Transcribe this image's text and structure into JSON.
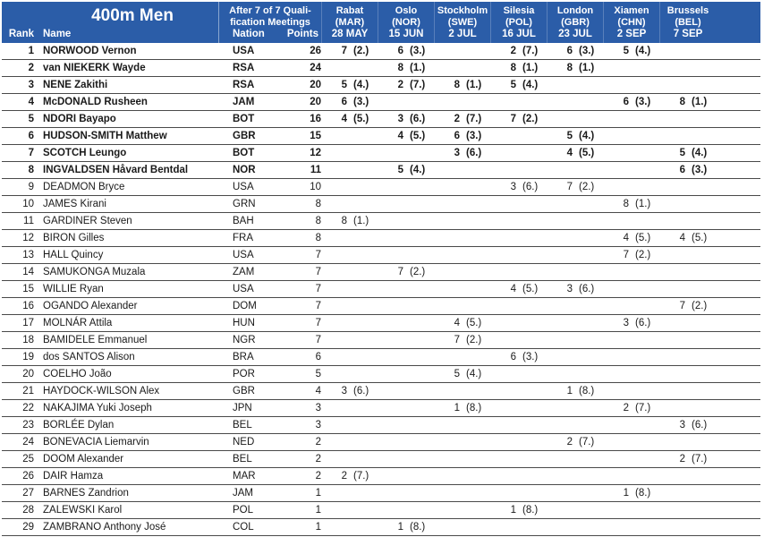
{
  "page": {
    "accent_blue": "#2b5da8",
    "line_color": "#4a4a4a",
    "text_color": "#1a1a1a"
  },
  "header": {
    "title": "400m Men",
    "qualification": [
      "After 7 of 7 Quali-",
      "fication Meetings"
    ],
    "columns": {
      "rank": "Rank",
      "name": "Name",
      "nation": "Nation",
      "points": "Points"
    },
    "meetings": [
      {
        "city": "Rabat",
        "nation": "(MAR)",
        "date": "28 MAY"
      },
      {
        "city": "Oslo",
        "nation": "(NOR)",
        "date": "15 JUN"
      },
      {
        "city": "Stockholm",
        "nation": "(SWE)",
        "date": "2 JUL"
      },
      {
        "city": "Silesia",
        "nation": "(POL)",
        "date": "16 JUL"
      },
      {
        "city": "London",
        "nation": "(GBR)",
        "date": "23 JUL"
      },
      {
        "city": "Xiamen",
        "nation": "(CHN)",
        "date": "2 SEP"
      },
      {
        "city": "Brussels",
        "nation": "(BEL)",
        "date": "7 SEP"
      }
    ]
  },
  "standings": [
    {
      "rank": "1",
      "name": "NORWOOD Vernon",
      "nation": "USA",
      "points": "26",
      "qualified_bold": true,
      "results": [
        [
          "7",
          "(2.)"
        ],
        [
          "6",
          "(3.)"
        ],
        null,
        [
          "2",
          "(7.)"
        ],
        [
          "6",
          "(3.)"
        ],
        [
          "5",
          "(4.)"
        ],
        null
      ]
    },
    {
      "rank": "2",
      "name": "van NIEKERK Wayde",
      "nation": "RSA",
      "points": "24",
      "qualified_bold": true,
      "results": [
        null,
        [
          "8",
          "(1.)"
        ],
        null,
        [
          "8",
          "(1.)"
        ],
        [
          "8",
          "(1.)"
        ],
        null,
        null
      ]
    },
    {
      "rank": "3",
      "name": "NENE Zakithi",
      "nation": "RSA",
      "points": "20",
      "qualified_bold": true,
      "results": [
        [
          "5",
          "(4.)"
        ],
        [
          "2",
          "(7.)"
        ],
        [
          "8",
          "(1.)"
        ],
        [
          "5",
          "(4.)"
        ],
        null,
        null,
        null
      ]
    },
    {
      "rank": "4",
      "name": "McDONALD Rusheen",
      "nation": "JAM",
      "points": "20",
      "qualified_bold": true,
      "results": [
        [
          "6",
          "(3.)"
        ],
        null,
        null,
        null,
        null,
        [
          "6",
          "(3.)"
        ],
        [
          "8",
          "(1.)"
        ]
      ]
    },
    {
      "rank": "5",
      "name": "NDORI Bayapo",
      "nation": "BOT",
      "points": "16",
      "qualified_bold": true,
      "results": [
        [
          "4",
          "(5.)"
        ],
        [
          "3",
          "(6.)"
        ],
        [
          "2",
          "(7.)"
        ],
        [
          "7",
          "(2.)"
        ],
        null,
        null,
        null
      ]
    },
    {
      "rank": "6",
      "name": "HUDSON-SMITH Matthew",
      "nation": "GBR",
      "points": "15",
      "qualified_bold": true,
      "results": [
        null,
        [
          "4",
          "(5.)"
        ],
        [
          "6",
          "(3.)"
        ],
        null,
        [
          "5",
          "(4.)"
        ],
        null,
        null
      ]
    },
    {
      "rank": "7",
      "name": "SCOTCH Leungo",
      "nation": "BOT",
      "points": "12",
      "qualified_bold": true,
      "results": [
        null,
        null,
        [
          "3",
          "(6.)"
        ],
        null,
        [
          "4",
          "(5.)"
        ],
        null,
        [
          "5",
          "(4.)"
        ]
      ]
    },
    {
      "rank": "8",
      "name": "INGVALDSEN Håvard Bentdal",
      "nation": "NOR",
      "points": "11",
      "qualified_bold": true,
      "results": [
        null,
        [
          "5",
          "(4.)"
        ],
        null,
        null,
        null,
        null,
        [
          "6",
          "(3.)"
        ]
      ]
    },
    {
      "rank": "9",
      "name": "DEADMON Bryce",
      "nation": "USA",
      "points": "10",
      "qualified_bold": false,
      "results": [
        null,
        null,
        null,
        [
          "3",
          "(6.)"
        ],
        [
          "7",
          "(2.)"
        ],
        null,
        null
      ]
    },
    {
      "rank": "10",
      "name": "JAMES Kirani",
      "nation": "GRN",
      "points": "8",
      "qualified_bold": false,
      "results": [
        null,
        null,
        null,
        null,
        null,
        [
          "8",
          "(1.)"
        ],
        null
      ]
    },
    {
      "rank": "11",
      "name": "GARDINER Steven",
      "nation": "BAH",
      "points": "8",
      "qualified_bold": false,
      "results": [
        [
          "8",
          "(1.)"
        ],
        null,
        null,
        null,
        null,
        null,
        null
      ]
    },
    {
      "rank": "12",
      "name": "BIRON Gilles",
      "nation": "FRA",
      "points": "8",
      "qualified_bold": false,
      "results": [
        null,
        null,
        null,
        null,
        null,
        [
          "4",
          "(5.)"
        ],
        [
          "4",
          "(5.)"
        ]
      ]
    },
    {
      "rank": "13",
      "name": "HALL Quincy",
      "nation": "USA",
      "points": "7",
      "qualified_bold": false,
      "results": [
        null,
        null,
        null,
        null,
        null,
        [
          "7",
          "(2.)"
        ],
        null
      ]
    },
    {
      "rank": "14",
      "name": "SAMUKONGA Muzala",
      "nation": "ZAM",
      "points": "7",
      "qualified_bold": false,
      "results": [
        null,
        [
          "7",
          "(2.)"
        ],
        null,
        null,
        null,
        null,
        null
      ]
    },
    {
      "rank": "15",
      "name": "WILLIE Ryan",
      "nation": "USA",
      "points": "7",
      "qualified_bold": false,
      "results": [
        null,
        null,
        null,
        [
          "4",
          "(5.)"
        ],
        [
          "3",
          "(6.)"
        ],
        null,
        null
      ]
    },
    {
      "rank": "16",
      "name": "OGANDO Alexander",
      "nation": "DOM",
      "points": "7",
      "qualified_bold": false,
      "results": [
        null,
        null,
        null,
        null,
        null,
        null,
        [
          "7",
          "(2.)"
        ]
      ]
    },
    {
      "rank": "17",
      "name": "MOLNÁR Attila",
      "nation": "HUN",
      "points": "7",
      "qualified_bold": false,
      "results": [
        null,
        null,
        [
          "4",
          "(5.)"
        ],
        null,
        null,
        [
          "3",
          "(6.)"
        ],
        null
      ]
    },
    {
      "rank": "18",
      "name": "BAMIDELE Emmanuel",
      "nation": "NGR",
      "points": "7",
      "qualified_bold": false,
      "results": [
        null,
        null,
        [
          "7",
          "(2.)"
        ],
        null,
        null,
        null,
        null
      ]
    },
    {
      "rank": "19",
      "name": "dos SANTOS Alison",
      "nation": "BRA",
      "points": "6",
      "qualified_bold": false,
      "results": [
        null,
        null,
        null,
        [
          "6",
          "(3.)"
        ],
        null,
        null,
        null
      ]
    },
    {
      "rank": "20",
      "name": "COELHO João",
      "nation": "POR",
      "points": "5",
      "qualified_bold": false,
      "results": [
        null,
        null,
        [
          "5",
          "(4.)"
        ],
        null,
        null,
        null,
        null
      ]
    },
    {
      "rank": "21",
      "name": "HAYDOCK-WILSON Alex",
      "nation": "GBR",
      "points": "4",
      "qualified_bold": false,
      "results": [
        [
          "3",
          "(6.)"
        ],
        null,
        null,
        null,
        [
          "1",
          "(8.)"
        ],
        null,
        null
      ]
    },
    {
      "rank": "22",
      "name": "NAKAJIMA Yuki Joseph",
      "nation": "JPN",
      "points": "3",
      "qualified_bold": false,
      "results": [
        null,
        null,
        [
          "1",
          "(8.)"
        ],
        null,
        null,
        [
          "2",
          "(7.)"
        ],
        null
      ]
    },
    {
      "rank": "23",
      "name": "BORLÉE Dylan",
      "nation": "BEL",
      "points": "3",
      "qualified_bold": false,
      "results": [
        null,
        null,
        null,
        null,
        null,
        null,
        [
          "3",
          "(6.)"
        ]
      ]
    },
    {
      "rank": "24",
      "name": "BONEVACIA Liemarvin",
      "nation": "NED",
      "points": "2",
      "qualified_bold": false,
      "results": [
        null,
        null,
        null,
        null,
        [
          "2",
          "(7.)"
        ],
        null,
        null
      ]
    },
    {
      "rank": "25",
      "name": "DOOM Alexander",
      "nation": "BEL",
      "points": "2",
      "qualified_bold": false,
      "results": [
        null,
        null,
        null,
        null,
        null,
        null,
        [
          "2",
          "(7.)"
        ]
      ]
    },
    {
      "rank": "26",
      "name": "DAIR Hamza",
      "nation": "MAR",
      "points": "2",
      "qualified_bold": false,
      "results": [
        [
          "2",
          "(7.)"
        ],
        null,
        null,
        null,
        null,
        null,
        null
      ]
    },
    {
      "rank": "27",
      "name": "BARNES Zandrion",
      "nation": "JAM",
      "points": "1",
      "qualified_bold": false,
      "results": [
        null,
        null,
        null,
        null,
        null,
        [
          "1",
          "(8.)"
        ],
        null
      ]
    },
    {
      "rank": "28",
      "name": "ZALEWSKI Karol",
      "nation": "POL",
      "points": "1",
      "qualified_bold": false,
      "results": [
        null,
        null,
        null,
        [
          "1",
          "(8.)"
        ],
        null,
        null,
        null
      ]
    },
    {
      "rank": "29",
      "name": "ZAMBRANO Anthony José",
      "nation": "COL",
      "points": "1",
      "qualified_bold": false,
      "results": [
        null,
        [
          "1",
          "(8.)"
        ],
        null,
        null,
        null,
        null,
        null
      ]
    }
  ]
}
